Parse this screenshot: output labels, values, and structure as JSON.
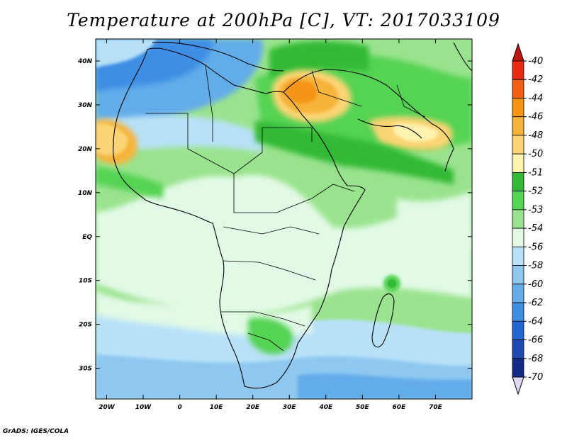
{
  "title": "Temperature at 200hPa [C], VT: 2017033109",
  "credit": "GrADS: IGES/COLA",
  "map": {
    "lon_ticks": [
      "20W",
      "10W",
      "0",
      "10E",
      "20E",
      "30E",
      "40E",
      "50E",
      "60E",
      "70E"
    ],
    "lat_ticks": [
      "40N",
      "30N",
      "20N",
      "10N",
      "EQ",
      "10S",
      "20S",
      "30S"
    ]
  },
  "colorbar": {
    "labels": [
      "-40",
      "-42",
      "-44",
      "-46",
      "-48",
      "-50",
      "-51",
      "-52",
      "-53",
      "-54",
      "-56",
      "-58",
      "-60",
      "-62",
      "-64",
      "-66",
      "-68",
      "-70"
    ],
    "colors": [
      "#e82a10",
      "#f25f12",
      "#f59412",
      "#f7b43a",
      "#fbd474",
      "#fff3b0",
      "#33b936",
      "#55d353",
      "#9ae38e",
      "#e2f9e6",
      "#b8e1f8",
      "#8ec8f0",
      "#64acea",
      "#3e8ee4",
      "#2466d3",
      "#1d4ab1",
      "#122a87"
    ],
    "top_color": "#c2150f",
    "bottom_color": "#ddd9f6"
  }
}
